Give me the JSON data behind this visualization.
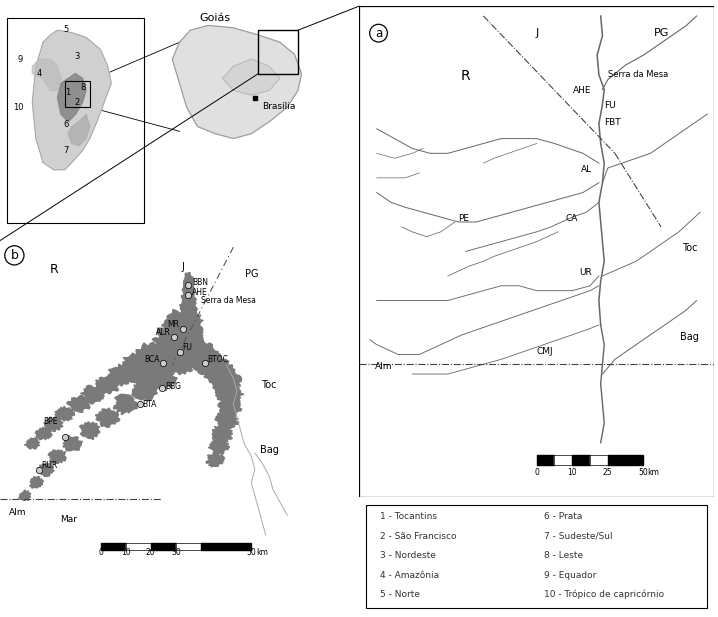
{
  "bg_color": "#ffffff",
  "panel_a_label": "a",
  "panel_b_label": "b",
  "goias_label": "Goiás",
  "brasilia_label": "Brasília",
  "lake_color": "#7a7a7a",
  "river_color": "#888888",
  "line_color": "#000000",
  "legend_left": [
    "1 - Tocantins",
    "2 - São Francisco",
    "3 - Nordeste",
    "4 - Amazônia",
    "5 - Norte"
  ],
  "legend_right": [
    "6 - Prata",
    "7 - Sudeste/Sul",
    "8 - Leste",
    "9 - Equador",
    "10 - Trópico de capricórnio"
  ]
}
